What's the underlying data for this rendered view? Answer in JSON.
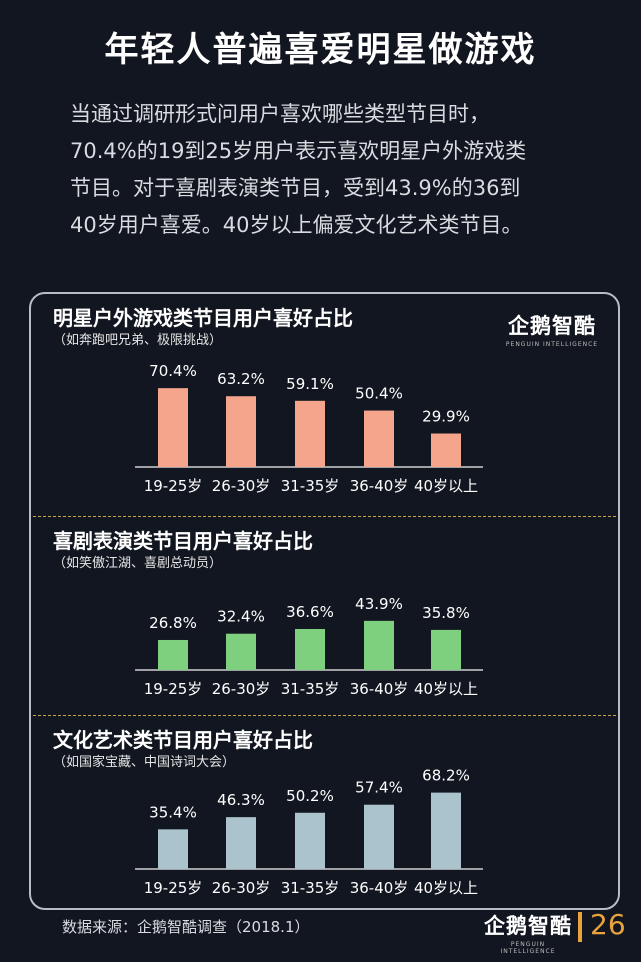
{
  "title": "年轻人普遍喜爱明星做游戏",
  "intro": [
    "当通过调研形式问用户喜欢哪些类型节目时，",
    "70.4%的19到25岁用户表示喜欢明星户外游戏类",
    "节目。对于喜剧表演类节目，受到43.9%的36到",
    "40岁用户喜爱。40岁以上偏爱文化艺术类节目。"
  ],
  "logo": {
    "cn": "企鹅智酷",
    "en": "PENGUIN INTELLIGENCE"
  },
  "source": "数据来源：企鹅智酷调查（2018.1）",
  "page_number": "26",
  "colors": {
    "background": "#121620",
    "accent": "#e8a33c",
    "outdoor_bar": "#f4a58c",
    "comedy_bar": "#7ed07e",
    "culture_bar": "#aac3cc"
  },
  "chart_data": [
    {
      "type": "bar",
      "title": "明星户外游戏类节目用户喜好占比",
      "subtitle": "（如奔跑吧兄弟、极限挑战）",
      "categories": [
        "19-25岁",
        "26-30岁",
        "31-35岁",
        "36-40岁",
        "40岁以上"
      ],
      "values": [
        70.4,
        63.2,
        59.1,
        50.4,
        29.9
      ],
      "labels": [
        "70.4%",
        "63.2%",
        "59.1%",
        "50.4%",
        "29.9%"
      ],
      "color": "#f4a58c",
      "unit": "%",
      "ylim": [
        0,
        100
      ]
    },
    {
      "type": "bar",
      "title": "喜剧表演类节目用户喜好占比",
      "subtitle": "（如笑傲江湖、喜剧总动员）",
      "categories": [
        "19-25岁",
        "26-30岁",
        "31-35岁",
        "36-40岁",
        "40岁以上"
      ],
      "values": [
        26.8,
        32.4,
        36.6,
        43.9,
        35.8
      ],
      "labels": [
        "26.8%",
        "32.4%",
        "36.6%",
        "43.9%",
        "35.8%"
      ],
      "color": "#7ed07e",
      "unit": "%",
      "ylim": [
        0,
        100
      ]
    },
    {
      "type": "bar",
      "title": "文化艺术类节目用户喜好占比",
      "subtitle": "（如国家宝藏、中国诗词大会）",
      "categories": [
        "19-25岁",
        "26-30岁",
        "31-35岁",
        "36-40岁",
        "40岁以上"
      ],
      "values": [
        35.4,
        46.3,
        50.2,
        57.4,
        68.2
      ],
      "labels": [
        "35.4%",
        "46.3%",
        "50.2%",
        "57.4%",
        "68.2%"
      ],
      "color": "#aac3cc",
      "unit": "%",
      "ylim": [
        0,
        100
      ]
    }
  ]
}
